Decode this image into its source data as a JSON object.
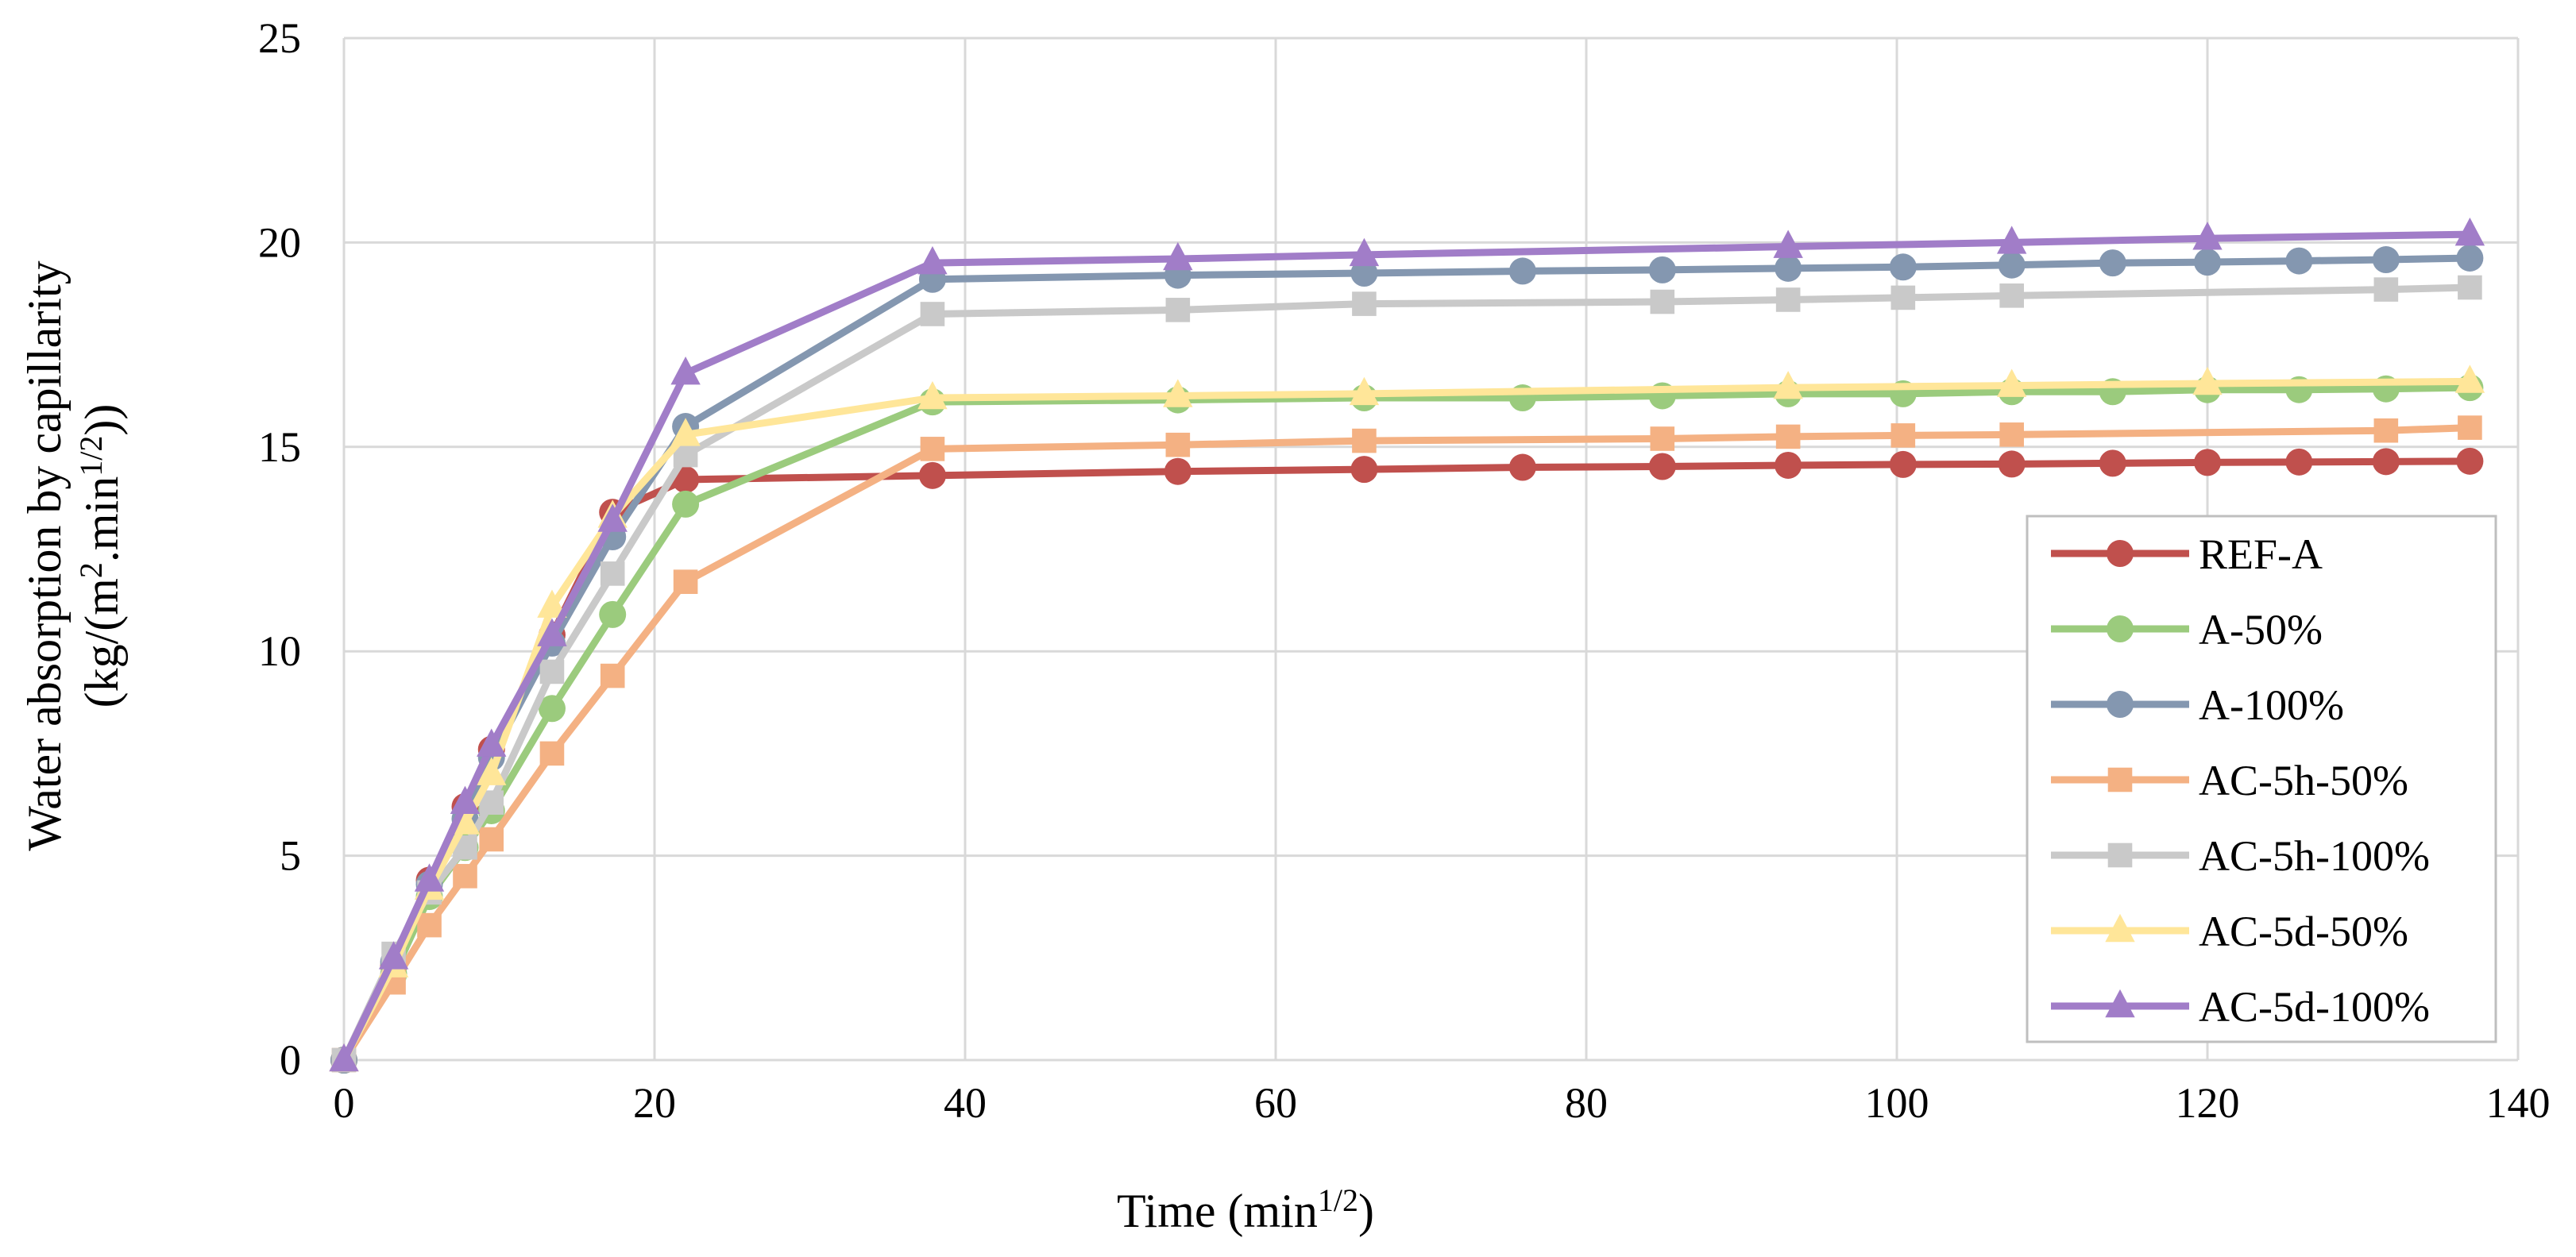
{
  "chart_data": {
    "type": "line",
    "title": "",
    "xlabel": {
      "main": "Time (min",
      "sup": "1/2",
      "end": ")"
    },
    "ylabel": {
      "line1": "Water absorption by capillarity",
      "line2_a": "(kg/(m",
      "line2_sup1": "2",
      "line2_b": ".min",
      "line2_sup2": "1/2",
      "line2_c": "))"
    },
    "xlim": [
      0,
      140
    ],
    "ylim": [
      0,
      25
    ],
    "xticks": [
      "0",
      "20",
      "40",
      "60",
      "80",
      "100",
      "120",
      "140"
    ],
    "yticks": [
      "0",
      "5",
      "10",
      "15",
      "20",
      "25"
    ],
    "grid": true,
    "legend_position": "right",
    "series": [
      {
        "name": "REF-A",
        "color": "#C0504D",
        "marker": "circle",
        "x": [
          0,
          3.2,
          5.5,
          7.8,
          9.5,
          13.4,
          17.3,
          22,
          37.9,
          53.7,
          65.7,
          75.9,
          84.9,
          93,
          100.4,
          107.4,
          113.9,
          120,
          125.9,
          131.5,
          136.9
        ],
        "y": [
          0,
          2.3,
          4.4,
          6.2,
          7.6,
          10.4,
          13.4,
          14.2,
          14.3,
          14.4,
          14.45,
          14.5,
          14.52,
          14.55,
          14.57,
          14.58,
          14.6,
          14.62,
          14.63,
          14.64,
          14.65
        ]
      },
      {
        "name": "A-50%",
        "color": "#9BCB7D",
        "marker": "circle",
        "x": [
          0,
          3.2,
          5.5,
          7.8,
          9.5,
          13.4,
          17.3,
          22,
          37.9,
          53.7,
          65.7,
          75.9,
          84.9,
          93,
          100.4,
          107.4,
          113.9,
          120,
          125.9,
          131.5,
          136.9
        ],
        "y": [
          0,
          2.1,
          4.0,
          5.2,
          6.1,
          8.6,
          10.9,
          13.6,
          16.1,
          16.15,
          16.2,
          16.2,
          16.25,
          16.3,
          16.3,
          16.35,
          16.35,
          16.4,
          16.4,
          16.42,
          16.45
        ]
      },
      {
        "name": "A-100%",
        "color": "#8497B0",
        "marker": "circle",
        "x": [
          0,
          3.2,
          5.5,
          7.8,
          9.5,
          13.4,
          17.3,
          22,
          37.9,
          53.7,
          65.7,
          75.9,
          84.9,
          93,
          100.4,
          107.4,
          113.9,
          120,
          125.9,
          131.5,
          136.9
        ],
        "y": [
          0,
          2.4,
          4.3,
          5.9,
          7.4,
          10.2,
          12.8,
          15.5,
          19.1,
          19.2,
          19.25,
          19.3,
          19.33,
          19.37,
          19.4,
          19.45,
          19.5,
          19.52,
          19.55,
          19.58,
          19.62
        ]
      },
      {
        "name": "AC-5h-50%",
        "color": "#F4B183",
        "marker": "square",
        "x": [
          0,
          3.2,
          5.5,
          7.8,
          9.5,
          13.4,
          17.3,
          22,
          37.9,
          53.7,
          65.7,
          84.9,
          93,
          100.4,
          107.4,
          131.5,
          136.9
        ],
        "y": [
          0,
          1.9,
          3.3,
          4.5,
          5.4,
          7.5,
          9.4,
          11.7,
          14.95,
          15.05,
          15.15,
          15.2,
          15.25,
          15.28,
          15.3,
          15.4,
          15.47
        ]
      },
      {
        "name": "AC-5h-100%",
        "color": "#C9C9C9",
        "marker": "square",
        "x": [
          0,
          3.2,
          5.5,
          7.8,
          9.5,
          13.4,
          17.3,
          22,
          37.9,
          53.7,
          65.7,
          84.9,
          93,
          100.4,
          107.4,
          131.5,
          136.9
        ],
        "y": [
          0,
          2.6,
          4.1,
          5.2,
          6.3,
          9.5,
          11.9,
          14.8,
          18.25,
          18.35,
          18.5,
          18.55,
          18.6,
          18.65,
          18.7,
          18.85,
          18.9
        ]
      },
      {
        "name": "AC-5d-50%",
        "color": "#FFE699",
        "marker": "triangle",
        "x": [
          0,
          3.2,
          5.5,
          7.8,
          9.5,
          13.4,
          17.3,
          22,
          37.9,
          53.7,
          65.7,
          93,
          107.4,
          120,
          136.9
        ],
        "y": [
          0,
          2.3,
          4.2,
          5.8,
          7.0,
          11.1,
          13.3,
          15.3,
          16.2,
          16.25,
          16.3,
          16.45,
          16.5,
          16.55,
          16.6
        ]
      },
      {
        "name": "AC-5d-100%",
        "color": "#A17DC8",
        "marker": "triangle",
        "x": [
          0,
          3.2,
          5.5,
          7.8,
          9.5,
          13.4,
          17.3,
          22,
          37.9,
          53.7,
          65.7,
          93,
          107.4,
          120,
          136.9
        ],
        "y": [
          0,
          2.5,
          4.4,
          6.3,
          7.7,
          10.4,
          13.2,
          16.8,
          19.5,
          19.6,
          19.7,
          19.9,
          20.0,
          20.1,
          20.2
        ]
      }
    ]
  }
}
